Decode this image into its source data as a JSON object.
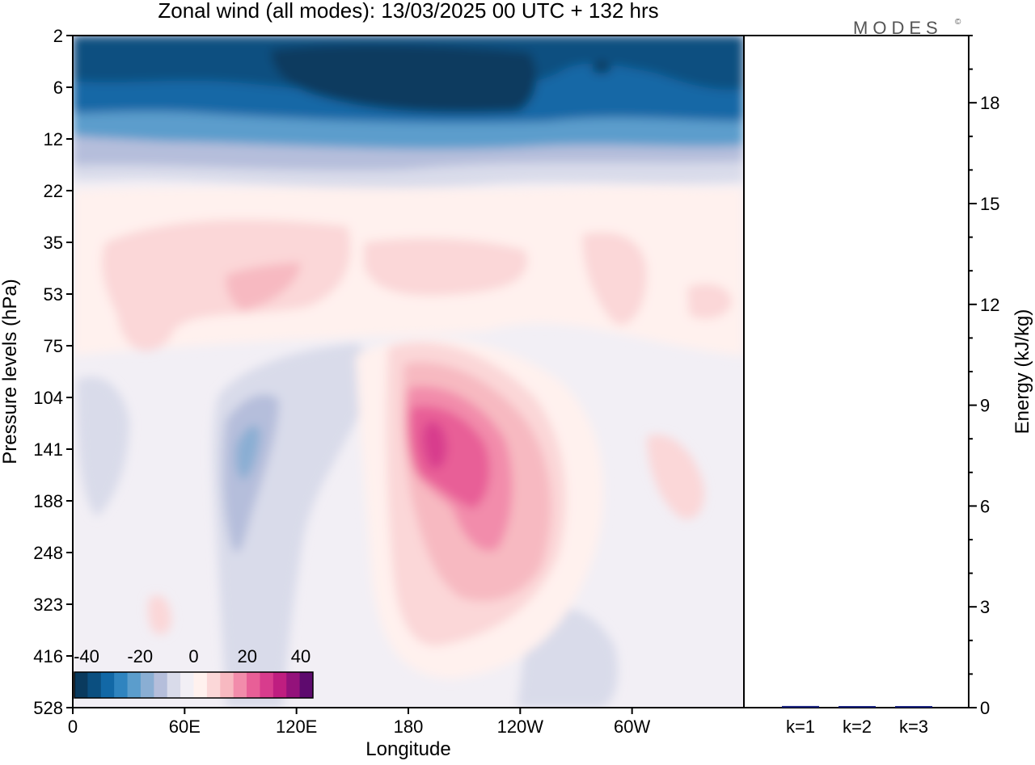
{
  "title": "Zonal wind (all modes):  13/03/2025  00 UTC  + 132 hrs",
  "brand": "MODES",
  "brand_mark": "©",
  "chart_data": [
    {
      "type": "heatmap",
      "title": "Zonal wind (all modes):  13/03/2025  00 UTC  + 132 hrs",
      "xlabel": "Longitude",
      "ylabel": "Pressure levels (hPa)",
      "x_ticks": [
        "0",
        "60E",
        "120E",
        "180",
        "120W",
        "60W"
      ],
      "x_tick_degrees": [
        0,
        60,
        120,
        180,
        240,
        300
      ],
      "x_range_degrees": [
        0,
        360
      ],
      "y_ticks": [
        "2",
        "6",
        "12",
        "22",
        "35",
        "53",
        "75",
        "104",
        "141",
        "188",
        "248",
        "323",
        "416",
        "528"
      ],
      "y_scale": "pressure levels (top 2 hPa, bottom 528 hPa)",
      "colorbar": {
        "labels": [
          "-40",
          "-20",
          "0",
          "20",
          "40"
        ],
        "values": [
          -40,
          -20,
          0,
          20,
          40
        ],
        "colors": [
          "#0a3a5e",
          "#0b4f80",
          "#1268a6",
          "#2f84bf",
          "#5b9dcc",
          "#8aaed3",
          "#b5bedb",
          "#d9dbea",
          "#f2eff5",
          "#fff1ee",
          "#fbd7d8",
          "#f7b9c1",
          "#f28cab",
          "#e85f97",
          "#d83c8d",
          "#bf1e80",
          "#94127b",
          "#5e0a6e"
        ]
      },
      "features": [
        {
          "label": "strong easterlies",
          "lon": [
            95,
            232
          ],
          "level": [
            3,
            8
          ],
          "value": -45
        },
        {
          "label": "easterlies band",
          "lon": [
            0,
            360
          ],
          "level": [
            2,
            12
          ],
          "value": -25
        },
        {
          "label": "westerly jet core",
          "lon": [
            180,
            195
          ],
          "level": [
            120,
            160
          ],
          "value": 30
        },
        {
          "label": "westerly jet",
          "lon": [
            170,
            240
          ],
          "level": [
            90,
            260
          ],
          "value": 20
        },
        {
          "label": "weak easterlies",
          "lon": [
            75,
            105
          ],
          "level": [
            110,
            250
          ],
          "value": -10
        },
        {
          "label": "weak westerlies",
          "lon": [
            15,
            245
          ],
          "level": [
            30,
            80
          ],
          "value": 7
        }
      ]
    },
    {
      "type": "bar",
      "categories": [
        "k=1",
        "k=2",
        "k=3"
      ],
      "values": [
        0.05,
        0.02,
        0.04
      ],
      "ylabel": "Energy (kJ/kg)",
      "y_ticks": [
        "0",
        "3",
        "6",
        "9",
        "12",
        "15",
        "18"
      ],
      "ylim": [
        0,
        20
      ],
      "bar_color": "#1a237e"
    }
  ]
}
